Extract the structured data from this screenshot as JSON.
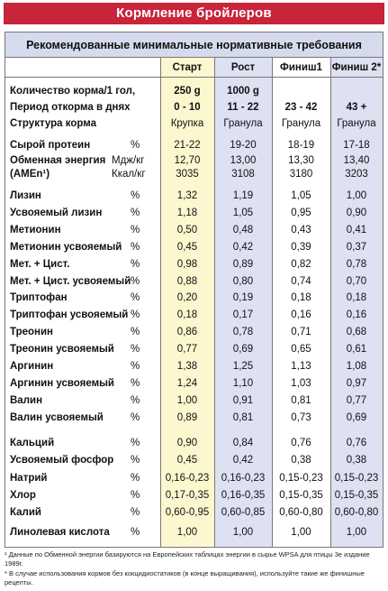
{
  "title": "Кормление бройлеров",
  "subtitle": "Рекомендованные минимальные нормативные требования",
  "columns": [
    "Старт",
    "Рост",
    "Финиш1",
    "Финиш 2*"
  ],
  "info": [
    {
      "label": "Количество корма/1 гол,",
      "values": [
        "250 g",
        "1000 g",
        "",
        ""
      ]
    },
    {
      "label": "Период откорма в днях",
      "values": [
        "0 - 10",
        "11 - 22",
        "23 - 42",
        "43 +"
      ]
    },
    {
      "label": "Структура корма",
      "values": [
        "Крупка",
        "Гранула",
        "Гранула",
        "Гранула"
      ]
    }
  ],
  "protein": {
    "label": "Сырой протеин",
    "unit": "%",
    "values": [
      "21-22",
      "19-20",
      "18-19",
      "17-18"
    ]
  },
  "energy": {
    "label": "Обменная энергия",
    "label2": "(AMEn¹)",
    "unit1": "Мдж/кг",
    "unit2": "Ккал/кг",
    "values1": [
      "12,70",
      "13,00",
      "13,30",
      "13,40"
    ],
    "values2": [
      "3035",
      "3108",
      "3180",
      "3203"
    ]
  },
  "nutrients": [
    {
      "label": "Лизин",
      "unit": "%",
      "values": [
        "1,32",
        "1,19",
        "1,05",
        "1,00"
      ]
    },
    {
      "label": "Усвояемый лизин",
      "unit": "%",
      "values": [
        "1,18",
        "1,05",
        "0,95",
        "0,90"
      ]
    },
    {
      "label": "Метионин",
      "unit": "%",
      "values": [
        "0,50",
        "0,48",
        "0,43",
        "0,41"
      ]
    },
    {
      "label": "Метионин усвояемый",
      "unit": "%",
      "values": [
        "0,45",
        "0,42",
        "0,39",
        "0,37"
      ]
    },
    {
      "label": "Мет. + Цист.",
      "unit": "%",
      "values": [
        "0,98",
        "0,89",
        "0,82",
        "0,78"
      ]
    },
    {
      "label": "Мет. + Цист. усвояемый",
      "unit": "%",
      "values": [
        "0,88",
        "0,80",
        "0,74",
        "0,70"
      ]
    },
    {
      "label": "Триптофан",
      "unit": "%",
      "values": [
        "0,20",
        "0,19",
        "0,18",
        "0,18"
      ]
    },
    {
      "label": "Триптофан усвояемый",
      "unit": "%",
      "values": [
        "0,18",
        "0,17",
        "0,16",
        "0,16"
      ]
    },
    {
      "label": "Треонин",
      "unit": "%",
      "values": [
        "0,86",
        "0,78",
        "0,71",
        "0,68"
      ]
    },
    {
      "label": "Треонин усвояемый",
      "unit": "%",
      "values": [
        "0,77",
        "0,69",
        "0,65",
        "0,61"
      ]
    },
    {
      "label": "Аргинин",
      "unit": "%",
      "values": [
        "1,38",
        "1,25",
        "1,13",
        "1,08"
      ]
    },
    {
      "label": "Аргинин усвояемый",
      "unit": "%",
      "values": [
        "1,24",
        "1,10",
        "1,03",
        "0,97"
      ]
    },
    {
      "label": "Валин",
      "unit": "%",
      "values": [
        "1,00",
        "0,91",
        "0,81",
        "0,77"
      ]
    },
    {
      "label": "Валин усвояемый",
      "unit": "%",
      "values": [
        "0,89",
        "0,81",
        "0,73",
        "0,69"
      ]
    }
  ],
  "minerals": [
    {
      "label": "Кальций",
      "unit": "%",
      "values": [
        "0,90",
        "0,84",
        "0,76",
        "0,76"
      ]
    },
    {
      "label": "Усвояемый фосфор",
      "unit": "%",
      "values": [
        "0,45",
        "0,42",
        "0,38",
        "0,38"
      ]
    },
    {
      "label": "Натрий",
      "unit": "%",
      "values": [
        "0,16-0,23",
        "0,16-0,23",
        "0,15-0,23",
        "0,15-0,23"
      ]
    },
    {
      "label": "Хлор",
      "unit": "%",
      "values": [
        "0,17-0,35",
        "0,16-0,35",
        "0,15-0,35",
        "0,15-0,35"
      ]
    },
    {
      "label": "Калий",
      "unit": "%",
      "values": [
        "0,60-0,95",
        "0,60-0,85",
        "0,60-0,80",
        "0,60-0,80"
      ]
    }
  ],
  "linoleic": {
    "label": "Линолевая кислота",
    "unit": "%",
    "values": [
      "1,00",
      "1,00",
      "1,00",
      "1,00"
    ]
  },
  "footnotes": [
    "¹ Данные по Обменной энергии базируются на Европейских таблицах энергии в сырье WPSA для птицы 3е издание 1989г.",
    "* В случае использования кормов без кокцидиостатиков (в конце выращивания), используйте такие же финишные рецепты."
  ]
}
